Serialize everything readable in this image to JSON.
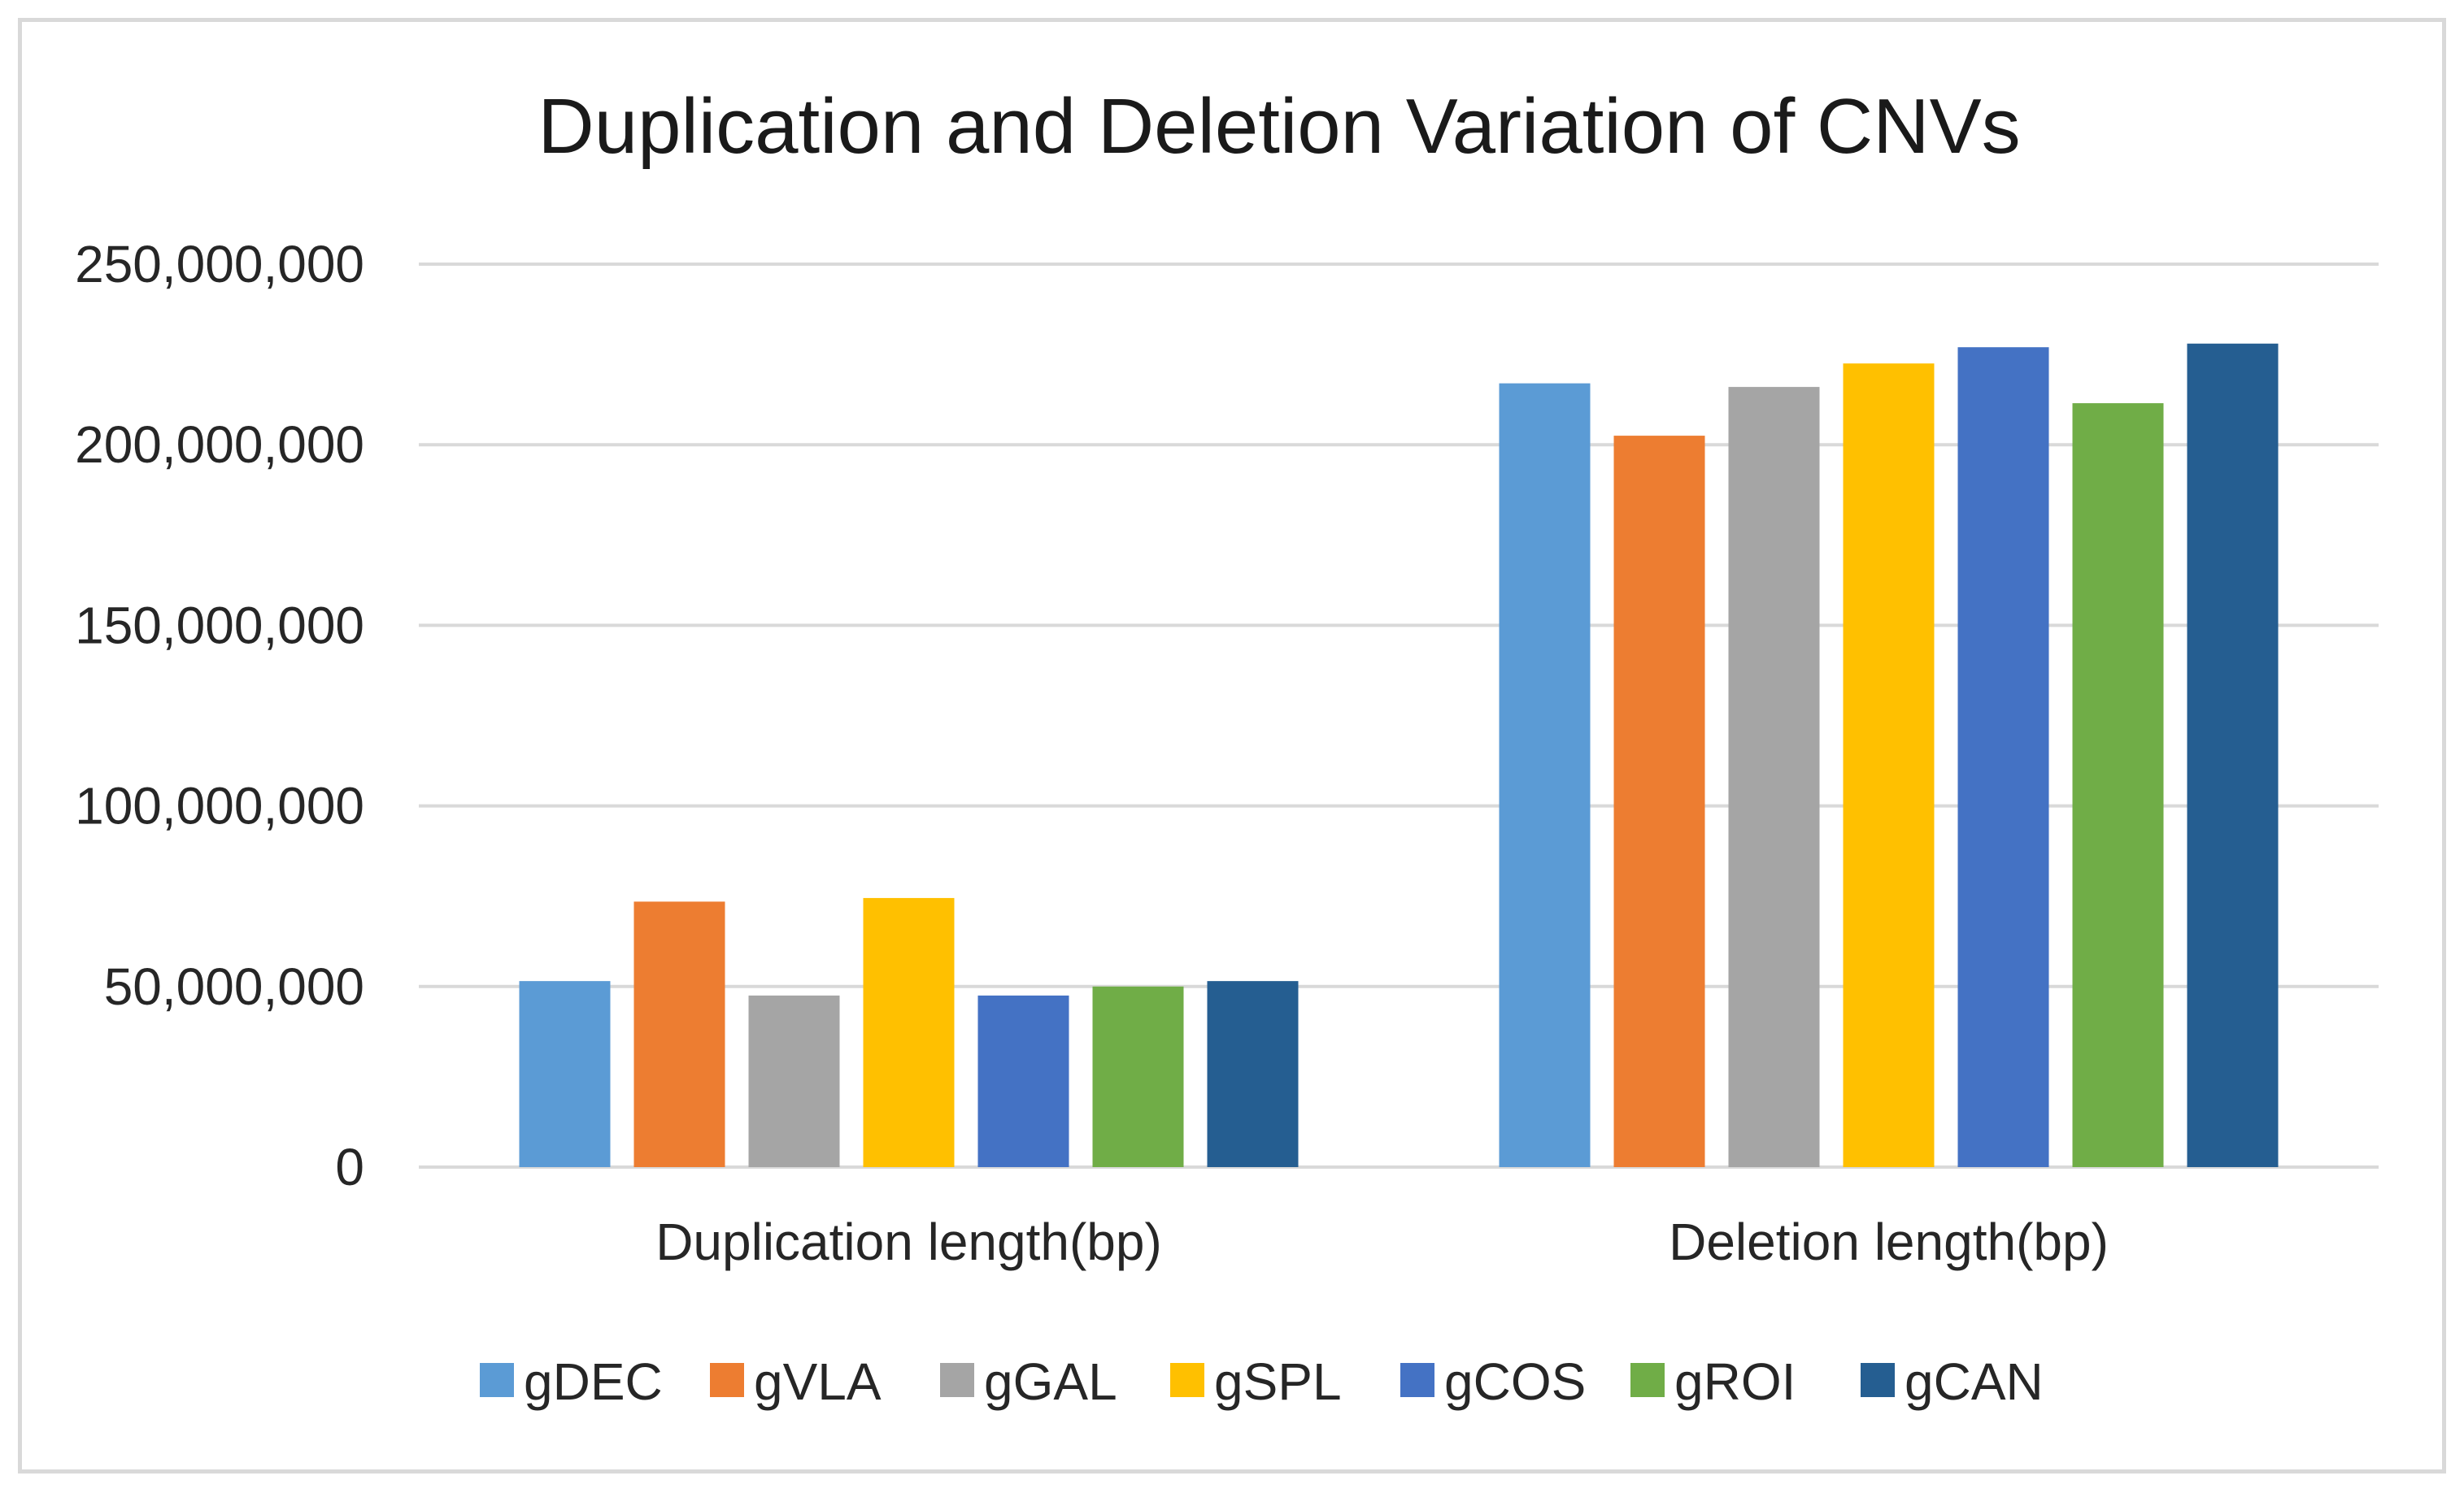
{
  "chart_data": {
    "type": "bar",
    "title": "Duplication and Deletion Variation of CNVs",
    "xlabel": "",
    "ylabel": "",
    "categories": [
      "Duplication length(bp)",
      "Deletion length(bp)"
    ],
    "ylim": [
      0,
      250000000
    ],
    "yticks": [
      0,
      50000000,
      100000000,
      150000000,
      200000000,
      250000000
    ],
    "ytick_labels": [
      "0",
      "50,000,000",
      "100,000,000",
      "150,000,000",
      "200,000,000",
      "250,000,000"
    ],
    "grid": true,
    "legend_position": "bottom",
    "series": [
      {
        "name": "gDEC",
        "color": "#5b9bd5",
        "values": [
          51500000,
          217000000
        ]
      },
      {
        "name": "gVLA",
        "color": "#ed7d31",
        "values": [
          73500000,
          202500000
        ]
      },
      {
        "name": "gGAL",
        "color": "#a5a5a5",
        "values": [
          47500000,
          216000000
        ]
      },
      {
        "name": "gSPL",
        "color": "#ffc000",
        "values": [
          74500000,
          222500000
        ]
      },
      {
        "name": "gCOS",
        "color": "#4472c4",
        "values": [
          47500000,
          227000000
        ]
      },
      {
        "name": "gROI",
        "color": "#70ad47",
        "values": [
          50000000,
          211500000
        ]
      },
      {
        "name": "gCAN",
        "color": "#255e91",
        "values": [
          51500000,
          228000000
        ]
      }
    ]
  }
}
